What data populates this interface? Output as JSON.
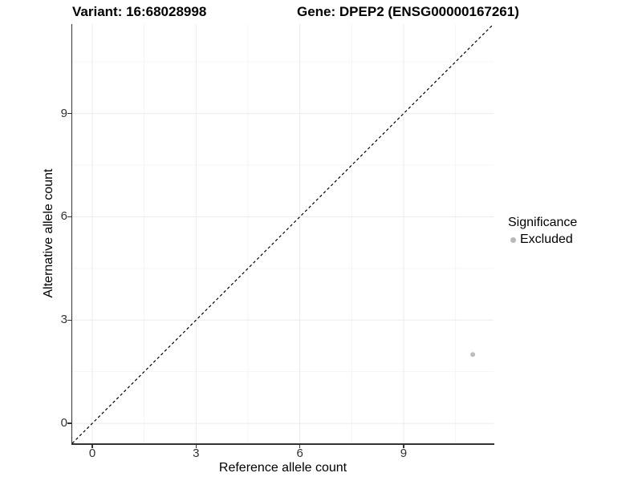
{
  "titles": {
    "left": "Variant: 16:68028998",
    "right": "Gene: DPEP2 (ENSG00000167261)"
  },
  "chart_data": {
    "type": "scatter",
    "xlabel": "Reference allele count",
    "ylabel": "Alternative allele count",
    "xlim": [
      -0.58,
      11.6
    ],
    "ylim": [
      -0.58,
      11.6
    ],
    "xticks": [
      0,
      3,
      6,
      9
    ],
    "yticks": [
      0,
      3,
      6,
      9
    ],
    "minor_ticks_x": [
      1.5,
      4.5,
      7.5,
      10.5
    ],
    "minor_ticks_y": [
      1.5,
      4.5,
      7.5,
      10.5
    ],
    "grid": true,
    "identity_line": {
      "style": "dashed",
      "color": "#000000",
      "from": -0.58,
      "to": 11.6
    },
    "series": [
      {
        "name": "Excluded",
        "color": "#bdbdbd",
        "points": [
          {
            "x": 11,
            "y": 2
          }
        ]
      }
    ],
    "legend": {
      "title": "Significance",
      "position": "right",
      "items": [
        {
          "label": "Excluded",
          "color": "#b9b9b9"
        }
      ]
    }
  },
  "colors": {
    "axis_line": "#333333",
    "tick_label": "#333333",
    "grid_major": "#ebebeb",
    "grid_minor": "#f5f5f5",
    "background": "#ffffff"
  }
}
